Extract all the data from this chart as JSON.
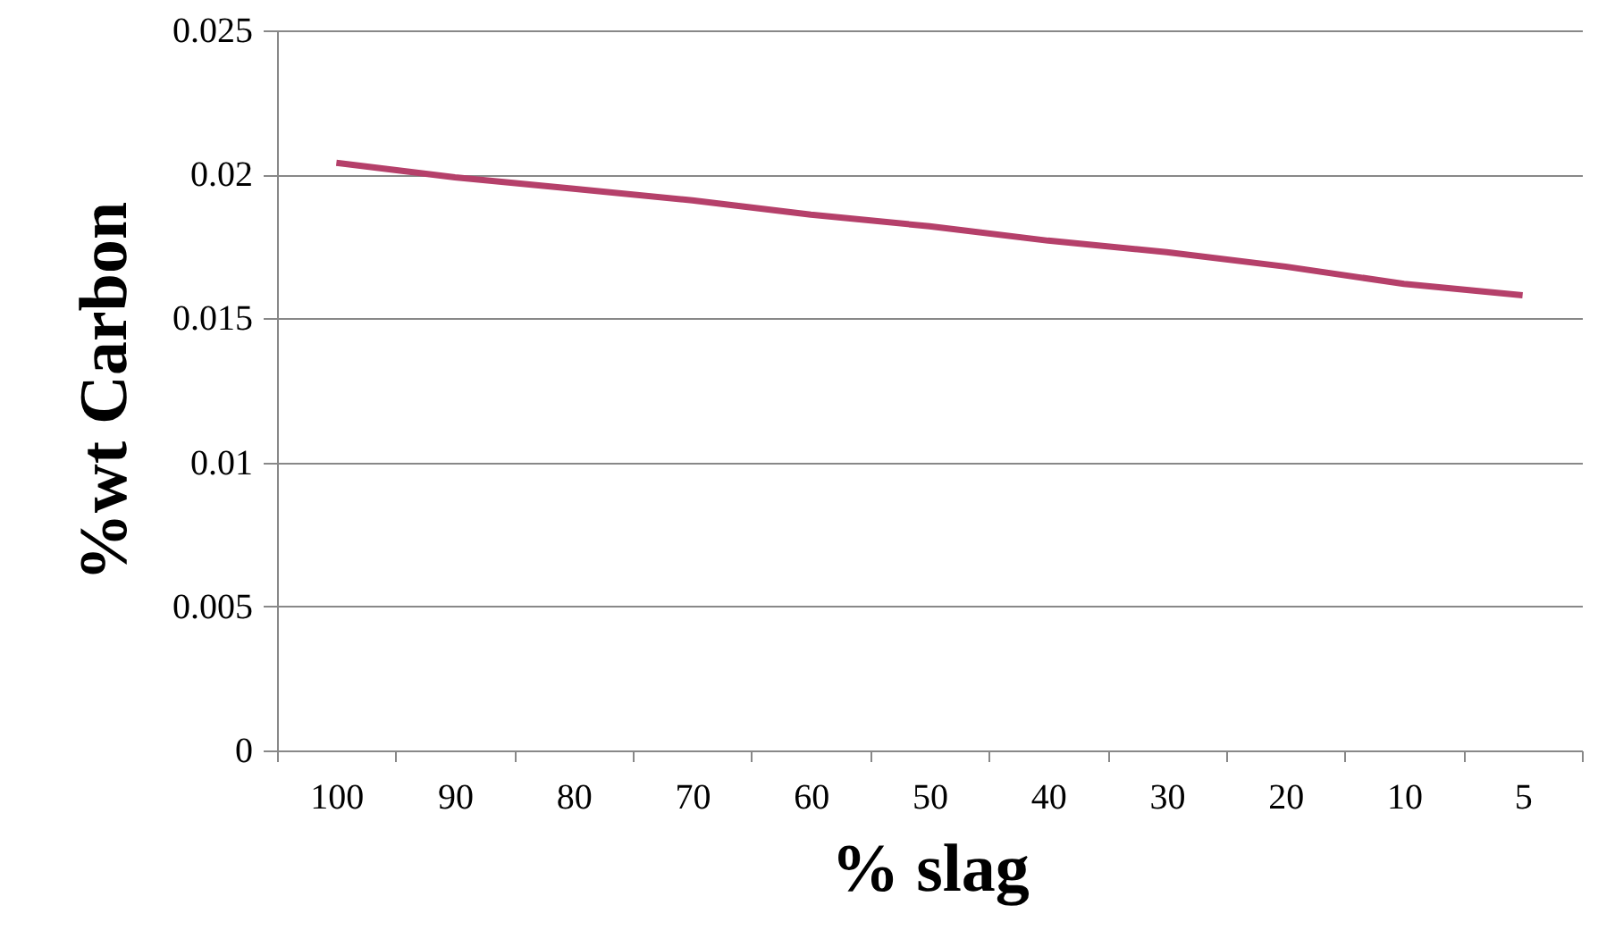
{
  "chart_data": {
    "type": "line",
    "xlabel": "% slag",
    "ylabel": "%wt Carbon",
    "categories": [
      "100",
      "90",
      "80",
      "70",
      "60",
      "50",
      "40",
      "30",
      "20",
      "10",
      "5"
    ],
    "series": [
      {
        "color": "#b5406a",
        "values": [
          0.0204,
          0.0199,
          0.0195,
          0.0191,
          0.0186,
          0.0182,
          0.0177,
          0.0173,
          0.0168,
          0.0162,
          0.0158
        ]
      }
    ],
    "ylim": [
      0,
      0.025
    ],
    "yticks": [
      0,
      0.005,
      0.01,
      0.015,
      0.02,
      0.025
    ],
    "grid": "y",
    "marker": "none",
    "line_style": "solid"
  }
}
